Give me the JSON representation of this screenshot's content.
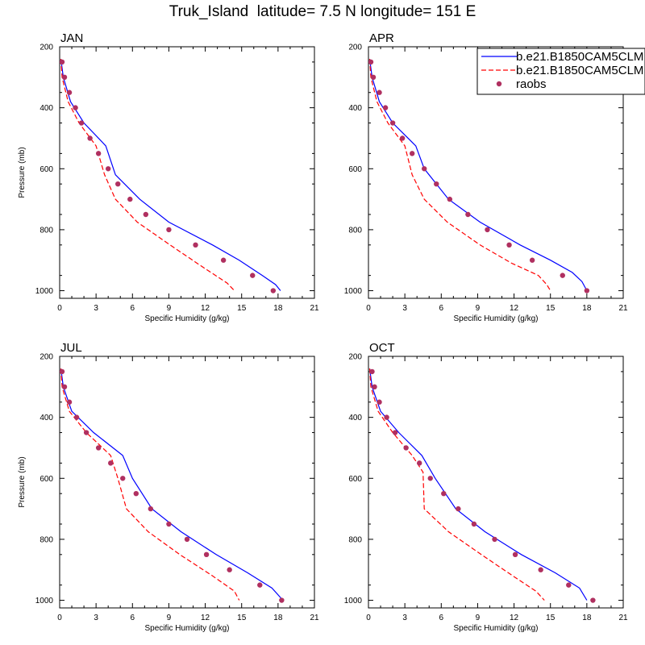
{
  "title": "Truk_Island  latitude= 7.5 N longitude= 151 E",
  "legend": {
    "placement": "top-right of APR panel",
    "entries": [
      {
        "label": "b.e21.B1850CAM5CLM",
        "style": "solid",
        "color": "#0000ff"
      },
      {
        "label": "b.e21.B1850CAM5CLM",
        "style": "dashed",
        "color": "#ff0000"
      },
      {
        "label": "raobs",
        "style": "marker",
        "color": "#b03060"
      }
    ]
  },
  "chart_data": [
    {
      "type": "line",
      "title": "JAN",
      "xlabel": "Specific Humidity (g/kg)",
      "ylabel": "Pressure (mb)",
      "xlim": [
        0,
        21
      ],
      "ylim": [
        1025,
        200
      ],
      "xticks": [
        "0",
        "3",
        "6",
        "9",
        "12",
        "15",
        "18",
        "21"
      ],
      "yticks": [
        "200",
        "400",
        "600",
        "800",
        "1000"
      ],
      "series": [
        {
          "name": "b.e21.B1850CAM5CLM",
          "style": "solid",
          "color": "#0000ff",
          "x": [
            0.1,
            0.3,
            0.9,
            2.0,
            3.8,
            4.6,
            6.6,
            9.0,
            12.6,
            14.8,
            16.7,
            17.8,
            18.2
          ],
          "y": [
            240,
            300,
            380,
            450,
            525,
            620,
            700,
            775,
            850,
            900,
            950,
            980,
            1000
          ]
        },
        {
          "name": "b.e21.B1850CAM5CLM",
          "style": "dashed",
          "color": "#ff0000",
          "x": [
            0.1,
            0.2,
            0.7,
            1.6,
            3.0,
            3.7,
            4.6,
            6.4,
            9.1,
            11.7,
            13.8,
            14.4
          ],
          "y": [
            240,
            300,
            380,
            450,
            525,
            620,
            700,
            775,
            850,
            920,
            975,
            1000
          ]
        },
        {
          "name": "raobs",
          "style": "marker",
          "color": "#b03060",
          "x": [
            0.2,
            0.4,
            0.8,
            1.3,
            1.8,
            2.5,
            3.2,
            4.0,
            4.8,
            5.8,
            7.1,
            9.0,
            11.2,
            13.5,
            15.9,
            17.6
          ],
          "y": [
            250,
            300,
            350,
            400,
            450,
            500,
            550,
            600,
            650,
            700,
            750,
            800,
            850,
            900,
            950,
            1000
          ]
        }
      ]
    },
    {
      "type": "line",
      "title": "APR",
      "xlabel": "Specific Humidity (g/kg)",
      "ylabel": "",
      "xlim": [
        0,
        21
      ],
      "ylim": [
        1025,
        200
      ],
      "xticks": [
        "0",
        "3",
        "6",
        "9",
        "12",
        "15",
        "18",
        "21"
      ],
      "yticks": [
        "200",
        "400",
        "600",
        "800",
        "1000"
      ],
      "series": [
        {
          "name": "b.e21.B1850CAM5CLM",
          "style": "solid",
          "color": "#0000ff",
          "x": [
            0.1,
            0.3,
            0.9,
            2.0,
            3.9,
            4.6,
            6.6,
            9.2,
            12.5,
            15.0,
            16.8,
            17.6,
            18.0
          ],
          "y": [
            240,
            300,
            380,
            450,
            525,
            600,
            700,
            775,
            850,
            900,
            940,
            970,
            1000
          ]
        },
        {
          "name": "b.e21.B1850CAM5CLM",
          "style": "dashed",
          "color": "#ff0000",
          "x": [
            0.1,
            0.2,
            0.7,
            1.6,
            3.0,
            3.6,
            4.6,
            6.5,
            9.2,
            11.8,
            14.0,
            14.7,
            15.0
          ],
          "y": [
            240,
            300,
            380,
            450,
            525,
            620,
            700,
            775,
            850,
            910,
            950,
            980,
            1000
          ]
        },
        {
          "name": "raobs",
          "style": "marker",
          "color": "#b03060",
          "x": [
            0.2,
            0.4,
            0.9,
            1.4,
            2.0,
            2.8,
            3.6,
            4.6,
            5.6,
            6.7,
            8.2,
            9.8,
            11.6,
            13.5,
            16.0,
            18.0
          ],
          "y": [
            250,
            300,
            350,
            400,
            450,
            500,
            550,
            600,
            650,
            700,
            750,
            800,
            850,
            900,
            950,
            1000
          ]
        }
      ]
    },
    {
      "type": "line",
      "title": "JUL",
      "xlabel": "Specific Humidity (g/kg)",
      "ylabel": "Pressure (mb)",
      "xlim": [
        0,
        21
      ],
      "ylim": [
        1025,
        200
      ],
      "xticks": [
        "0",
        "3",
        "6",
        "9",
        "12",
        "15",
        "18",
        "21"
      ],
      "yticks": [
        "200",
        "400",
        "600",
        "800",
        "1000"
      ],
      "series": [
        {
          "name": "b.e21.B1850CAM5CLM",
          "style": "solid",
          "color": "#0000ff",
          "x": [
            0.1,
            0.3,
            1.0,
            2.8,
            5.2,
            6.0,
            7.6,
            10.0,
            12.9,
            15.5,
            17.5,
            18.4
          ],
          "y": [
            240,
            300,
            380,
            450,
            525,
            600,
            700,
            775,
            850,
            910,
            960,
            1000
          ]
        },
        {
          "name": "b.e21.B1850CAM5CLM",
          "style": "dashed",
          "color": "#ff0000",
          "x": [
            0.1,
            0.2,
            0.8,
            2.2,
            4.2,
            4.8,
            5.5,
            7.3,
            9.9,
            12.6,
            14.4,
            14.8
          ],
          "y": [
            240,
            300,
            380,
            450,
            525,
            600,
            700,
            775,
            850,
            920,
            970,
            1000
          ]
        },
        {
          "name": "raobs",
          "style": "marker",
          "color": "#b03060",
          "x": [
            0.2,
            0.4,
            0.8,
            1.4,
            2.2,
            3.2,
            4.2,
            5.2,
            6.3,
            7.5,
            9.0,
            10.5,
            12.1,
            14.0,
            16.5,
            18.3
          ],
          "y": [
            250,
            300,
            350,
            400,
            450,
            500,
            550,
            600,
            650,
            700,
            750,
            800,
            850,
            900,
            950,
            1000
          ]
        }
      ]
    },
    {
      "type": "line",
      "title": "OCT",
      "xlabel": "Specific Humidity (g/kg)",
      "ylabel": "",
      "xlim": [
        0,
        21
      ],
      "ylim": [
        1025,
        200
      ],
      "xticks": [
        "0",
        "3",
        "6",
        "9",
        "12",
        "15",
        "18",
        "21"
      ],
      "yticks": [
        "200",
        "400",
        "600",
        "800",
        "1000"
      ],
      "series": [
        {
          "name": "b.e21.B1850CAM5CLM",
          "style": "solid",
          "color": "#0000ff",
          "x": [
            0.1,
            0.3,
            1.0,
            2.5,
            4.4,
            5.5,
            7.2,
            9.6,
            12.6,
            15.4,
            17.4,
            18.0
          ],
          "y": [
            240,
            300,
            380,
            450,
            525,
            600,
            700,
            775,
            850,
            910,
            960,
            1000
          ]
        },
        {
          "name": "b.e21.B1850CAM5CLM",
          "style": "dashed",
          "color": "#ff0000",
          "x": [
            0.1,
            0.2,
            0.8,
            2.0,
            3.6,
            4.5,
            4.6,
            6.6,
            9.3,
            11.9,
            13.8,
            14.5
          ],
          "y": [
            240,
            300,
            380,
            450,
            525,
            580,
            700,
            775,
            850,
            920,
            970,
            1000
          ]
        },
        {
          "name": "raobs",
          "style": "marker",
          "color": "#b03060",
          "x": [
            0.3,
            0.5,
            0.9,
            1.5,
            2.2,
            3.1,
            4.2,
            5.1,
            6.2,
            7.4,
            8.7,
            10.4,
            12.1,
            14.2,
            16.5,
            18.5
          ],
          "y": [
            250,
            300,
            350,
            400,
            450,
            500,
            550,
            600,
            650,
            700,
            750,
            800,
            850,
            900,
            950,
            1000
          ]
        }
      ]
    }
  ]
}
